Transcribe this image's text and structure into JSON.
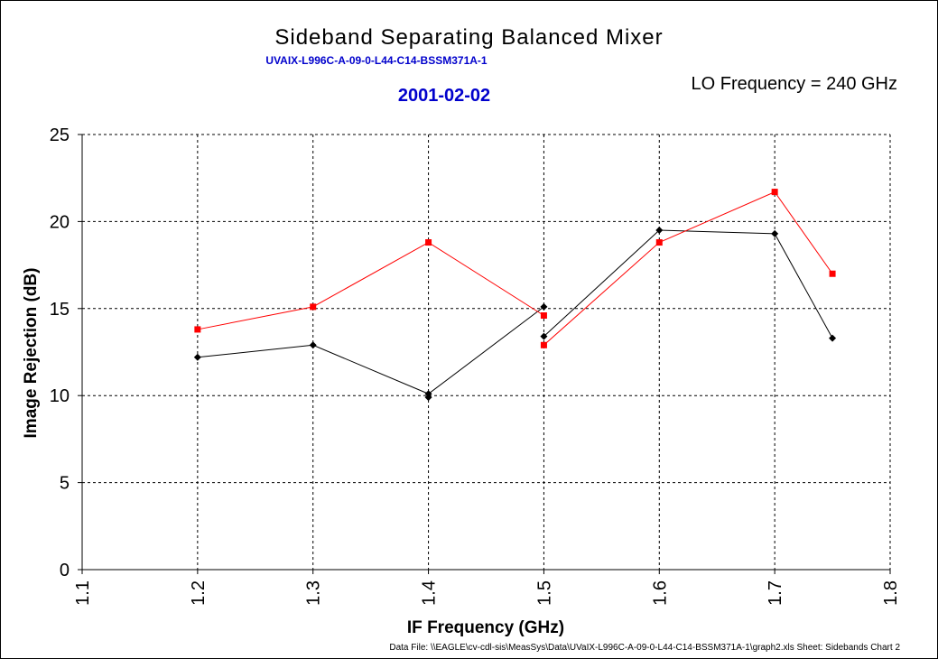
{
  "chart_data": {
    "type": "line",
    "title": "Sideband Separating Balanced Mixer",
    "subtitle": "UVAIX-L996C-A-09-0-L44-C14-BSSM371A-1",
    "date": "2001-02-02",
    "annotation": "LO Frequency = 240 GHz",
    "footer": "Data File: \\\\EAGLE\\cv-cdl-sis\\MeasSys\\Data\\UVaIX-L996C-A-09-0-L44-C14-BSSM371A-1\\graph2.xls  Sheet: Sidebands Chart 2",
    "xlabel": "IF Frequency (GHz)",
    "ylabel": "Image Rejection (dB)",
    "xlim": [
      1.1,
      1.8
    ],
    "ylim": [
      0,
      25
    ],
    "xticks": [
      "1.1",
      "1.2",
      "1.3",
      "1.4",
      "1.5",
      "1.6",
      "1.7",
      "1.8"
    ],
    "yticks": [
      "0",
      "5",
      "10",
      "15",
      "20",
      "25"
    ],
    "grid": true,
    "legend": "none",
    "series": [
      {
        "color": "#000000",
        "marker": "diamond",
        "segments": [
          [
            [
              1.2,
              12.2
            ],
            [
              1.3,
              12.9
            ],
            [
              1.4,
              10.1
            ],
            [
              1.5,
              15.1
            ]
          ],
          [
            [
              1.5,
              13.4
            ],
            [
              1.6,
              19.5
            ],
            [
              1.7,
              19.3
            ],
            [
              1.75,
              13.3
            ]
          ]
        ],
        "extra_points": [
          [
            1.4,
            9.9
          ]
        ]
      },
      {
        "color": "#ff0000",
        "marker": "square",
        "segments": [
          [
            [
              1.2,
              13.8
            ],
            [
              1.3,
              15.1
            ],
            [
              1.4,
              18.8
            ],
            [
              1.5,
              14.6
            ]
          ],
          [
            [
              1.5,
              12.9
            ],
            [
              1.6,
              18.8
            ],
            [
              1.7,
              21.7
            ],
            [
              1.75,
              17.0
            ]
          ]
        ],
        "extra_points": []
      }
    ]
  }
}
